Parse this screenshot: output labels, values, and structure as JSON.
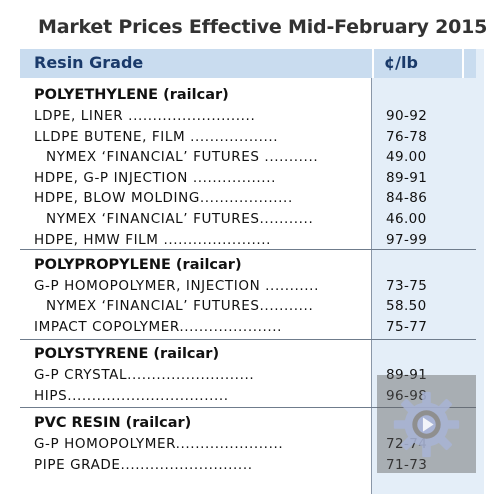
{
  "title": "Market Prices Effective Mid-February 2015",
  "header": {
    "grade_label": "Resin Grade",
    "unit_label": "¢/lb"
  },
  "sections": [
    {
      "name": "POLYETHYLENE (railcar)",
      "rows": [
        {
          "label": "LDPE, LINER ..........................",
          "value": "90-92",
          "indent": 0
        },
        {
          "label": "LLDPE BUTENE, FILM ..................",
          "value": "76-78",
          "indent": 0
        },
        {
          "label": "NYMEX ‘FINANCIAL’ FUTURES ...........",
          "value": "49.00",
          "indent": 1
        },
        {
          "label": "HDPE, G-P INJECTION .................",
          "value": "89-91",
          "indent": 0
        },
        {
          "label": "HDPE, BLOW MOLDING...................",
          "value": "84-86",
          "indent": 0
        },
        {
          "label": "NYMEX ‘FINANCIAL’ FUTURES...........",
          "value": "46.00",
          "indent": 1
        },
        {
          "label": "HDPE, HMW FILM ......................",
          "value": "97-99",
          "indent": 0
        }
      ]
    },
    {
      "name": "POLYPROPYLENE (railcar)",
      "rows": [
        {
          "label": "G-P HOMOPOLYMER, INJECTION ...........",
          "value": "73-75",
          "indent": 0
        },
        {
          "label": "NYMEX ‘FINANCIAL’ FUTURES...........",
          "value": "58.50",
          "indent": 1
        },
        {
          "label": "IMPACT COPOLYMER.....................",
          "value": "75-77",
          "indent": 0
        }
      ]
    },
    {
      "name": "POLYSTYRENE (railcar)",
      "rows": [
        {
          "label": "G-P CRYSTAL..........................",
          "value": "89-91",
          "indent": 0
        },
        {
          "label": "HIPS.................................",
          "value": "96-98",
          "indent": 0
        }
      ]
    },
    {
      "name": "PVC RESIN (railcar)",
      "rows": [
        {
          "label": "G-P HOMOPOLYMER......................",
          "value": "72-74",
          "indent": 0
        },
        {
          "label": "PIPE GRADE...........................",
          "value": "71-73",
          "indent": 0
        }
      ]
    }
  ],
  "watermark_icon": "gear-icon"
}
